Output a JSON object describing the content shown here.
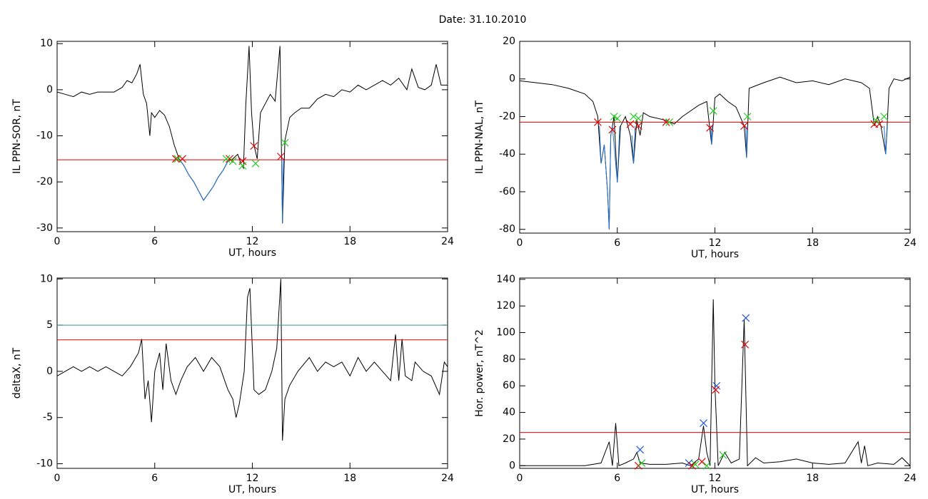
{
  "title": "Date:  31.10.2010",
  "chart_data": [
    {
      "type": "line",
      "ylabel": "IL PPN-SOR, nT",
      "xlabel": "UT, hours",
      "xlim": [
        0,
        24
      ],
      "xticks": [
        0,
        6,
        12,
        18,
        24
      ],
      "ylim": [
        -30.8,
        10.5
      ],
      "yticks": [
        -30,
        -20,
        -10,
        0,
        10
      ],
      "series": [
        {
          "type": "line",
          "color": "#000000",
          "x": [
            0,
            0.5,
            1,
            1.5,
            2,
            2.5,
            3,
            3.5,
            4,
            4.3,
            4.6,
            4.9,
            5.1,
            5.3,
            5.5,
            5.7,
            5.8,
            6.0,
            6.3,
            6.6,
            6.9,
            7.2,
            7.5,
            7.8,
            8.1,
            8.4,
            8.7,
            9,
            9.3,
            9.6,
            9.9,
            10.2,
            10.5,
            10.8,
            11.1,
            11.3,
            11.45,
            11.6,
            11.8,
            11.95,
            12.1,
            12.3,
            12.5,
            12.8,
            13.1,
            13.4,
            13.7,
            13.85,
            14.0,
            14.3,
            14.6,
            15,
            15.5,
            16,
            16.5,
            17,
            17.5,
            18,
            18.5,
            19,
            19.5,
            20,
            20.5,
            21,
            21.5,
            21.8,
            22.2,
            22.6,
            23,
            23.3,
            23.6,
            24
          ],
          "values": [
            -0.5,
            -1,
            -1.5,
            -0.5,
            -1,
            -0.5,
            -0.5,
            -0.5,
            0.5,
            2,
            1.5,
            3.5,
            5.5,
            -1,
            -3,
            -10,
            -5,
            -6,
            -4.5,
            -5.5,
            -8,
            -12,
            -15,
            -16.5,
            -18.5,
            -20,
            -22,
            -24,
            -22.5,
            -21,
            -19,
            -17.5,
            -15.5,
            -15,
            -14,
            -16,
            -17,
            -3,
            9.5,
            -5,
            -12,
            -15,
            -5,
            -3,
            -1,
            -2.5,
            9.5,
            -29,
            -11,
            -6,
            -5,
            -4,
            -4,
            -2,
            -1,
            -1.5,
            0,
            -0.5,
            1,
            0,
            1,
            2,
            1,
            2.5,
            0,
            4.5,
            0.5,
            0,
            1,
            5.5,
            1,
            1
          ]
        },
        {
          "type": "line",
          "color": "#1f6fd0",
          "x": [
            7.5,
            7.8,
            8.1,
            8.4,
            8.7,
            9,
            9.3,
            9.6,
            9.9,
            10.2,
            10.5,
            12,
            13.8,
            13.85,
            13.9
          ],
          "values": [
            -15,
            -16.5,
            -18.5,
            -20,
            -22,
            -24,
            -22.5,
            -21,
            -19,
            -17.5,
            -15.5,
            null,
            -15,
            -29,
            -15
          ]
        },
        {
          "type": "line",
          "color": "#e00000",
          "x": [
            0,
            24
          ],
          "values": [
            -15.2,
            -15.2
          ]
        },
        {
          "type": "scatter",
          "color": "#e00000",
          "x": [
            7.3,
            7.7,
            10.6,
            11.4,
            12.1,
            13.75
          ],
          "values": [
            -15,
            -15,
            -15,
            -15.5,
            -12.2,
            -14.5
          ]
        },
        {
          "type": "scatter",
          "color": "#22cc22",
          "x": [
            7.4,
            10.4,
            10.8,
            11.4,
            12.2,
            14.0
          ],
          "values": [
            -15,
            -15,
            -15.5,
            -16.5,
            -16,
            -11.5
          ]
        }
      ]
    },
    {
      "type": "line",
      "ylabel": "IL PPN-NAL, nT",
      "xlabel": "UT, hours",
      "xlim": [
        0,
        24
      ],
      "xticks": [
        0,
        6,
        12,
        18,
        24
      ],
      "ylim": [
        -82,
        20
      ],
      "yticks": [
        -80,
        -60,
        -40,
        -20,
        0,
        20
      ],
      "series": [
        {
          "type": "line",
          "color": "#000000",
          "x": [
            0,
            1,
            2,
            3,
            4,
            4.5,
            4.8,
            5.0,
            5.2,
            5.4,
            5.5,
            5.6,
            5.8,
            6.0,
            6.2,
            6.5,
            6.8,
            7.0,
            7.2,
            7.4,
            7.6,
            8,
            9,
            9.5,
            10,
            10.5,
            11,
            11.5,
            11.8,
            12,
            12.3,
            12.8,
            13.3,
            13.8,
            13.95,
            14.1,
            15,
            16,
            17,
            18,
            19,
            20,
            21,
            21.5,
            21.8,
            22.0,
            22.2,
            22.5,
            22.7,
            23,
            23.5,
            24
          ],
          "values": [
            -1,
            -2,
            -3,
            -5,
            -8,
            -12,
            -20,
            -45,
            -35,
            -60,
            -80,
            -30,
            -20,
            -55,
            -25,
            -20,
            -30,
            -45,
            -22,
            -30,
            -18,
            -20,
            -22,
            -24,
            -20,
            -17,
            -14,
            -12,
            -35,
            -10,
            -8,
            -12,
            -15,
            -25,
            -42,
            -5,
            -2,
            1,
            -2,
            -1,
            -3,
            0,
            -2,
            -5,
            -25,
            -20,
            -25,
            -40,
            -5,
            0,
            -1,
            1
          ]
        },
        {
          "type": "line",
          "color": "#1f6fd0",
          "x": [
            4.9,
            5.0,
            5.2,
            5.4,
            5.5,
            5.6,
            5.7,
            6.0,
            6.15,
            6.5,
            6.9,
            7.0,
            7.1,
            10,
            11.75,
            11.8,
            11.85,
            13,
            13.9,
            13.95,
            14.0,
            20,
            22.4,
            22.5,
            22.6
          ],
          "values": [
            -25,
            -45,
            -35,
            -60,
            -80,
            -30,
            -25,
            -55,
            -25,
            null,
            -30,
            -45,
            -25,
            null,
            -25,
            -35,
            -25,
            null,
            -25,
            -42,
            -25,
            null,
            -25,
            -40,
            -25
          ]
        },
        {
          "type": "line",
          "color": "#e00000",
          "x": [
            0,
            24
          ],
          "values": [
            -23,
            -23
          ]
        },
        {
          "type": "scatter",
          "color": "#e00000",
          "x": [
            4.8,
            5.7,
            6.8,
            7.3,
            9,
            11.7,
            13.8,
            21.8,
            22.1
          ],
          "values": [
            -23,
            -27,
            -24,
            -25,
            -23,
            -26,
            -25,
            -24,
            -24
          ]
        },
        {
          "type": "scatter",
          "color": "#22cc22",
          "x": [
            5.8,
            6.0,
            7.0,
            7.3,
            9.2,
            11.9,
            14.0,
            21.9,
            22.4
          ],
          "values": [
            -20,
            -21,
            -20,
            -21,
            -23,
            -17,
            -20,
            -22,
            -20
          ]
        }
      ]
    },
    {
      "type": "line",
      "ylabel": "deltaX, nT",
      "xlabel": "UT, hours",
      "xlim": [
        0,
        24
      ],
      "xticks": [
        0,
        6,
        12,
        18,
        24
      ],
      "ylim": [
        -10.5,
        10.1
      ],
      "yticks": [
        -10,
        -5,
        0,
        5,
        10
      ],
      "series": [
        {
          "type": "line",
          "color": "#000000",
          "x": [
            0,
            0.5,
            1,
            1.5,
            2,
            2.5,
            3,
            3.5,
            4,
            4.5,
            5,
            5.2,
            5.4,
            5.6,
            5.8,
            6,
            6.3,
            6.5,
            6.7,
            7,
            7.3,
            7.6,
            8,
            8.5,
            9,
            9.5,
            10,
            10.5,
            10.8,
            11,
            11.2,
            11.5,
            11.7,
            11.85,
            12.1,
            12.4,
            12.8,
            13.2,
            13.5,
            13.75,
            13.85,
            14,
            14.3,
            14.8,
            15.5,
            16,
            16.5,
            17,
            17.5,
            18,
            18.5,
            19,
            19.5,
            20,
            20.5,
            20.8,
            21,
            21.2,
            21.4,
            21.8,
            22,
            22.5,
            23,
            23.5,
            23.8,
            24
          ],
          "values": [
            -0.5,
            0,
            0.5,
            0,
            0.5,
            0,
            0.5,
            0,
            -0.5,
            0.5,
            2,
            3.5,
            -3,
            -1,
            -5.5,
            0,
            2,
            -2,
            3,
            -1,
            -2.5,
            -1,
            0.5,
            1.5,
            0,
            1.5,
            0.5,
            -2,
            -3,
            -5,
            -3.5,
            0,
            8,
            9,
            -2,
            -2.5,
            -2,
            0,
            2.5,
            10,
            -7.5,
            -3,
            -1.5,
            0,
            1.5,
            0,
            1,
            0.5,
            1,
            -0.5,
            1.5,
            0,
            1,
            0,
            -1,
            4,
            -1,
            3.5,
            -0.5,
            -1,
            1,
            0,
            -0.5,
            -2.5,
            1,
            0.5
          ]
        },
        {
          "type": "line",
          "color": "#339999",
          "x": [
            0,
            24
          ],
          "values": [
            5,
            5
          ]
        },
        {
          "type": "line",
          "color": "#e00000",
          "x": [
            0,
            24
          ],
          "values": [
            3.4,
            3.4
          ]
        }
      ]
    },
    {
      "type": "line",
      "ylabel": "Hor. power, nT^2",
      "xlabel": "UT, hours",
      "xlim": [
        0,
        24
      ],
      "xticks": [
        0,
        6,
        12,
        18,
        24
      ],
      "ylim": [
        -2,
        141
      ],
      "yticks": [
        0,
        20,
        40,
        60,
        80,
        100,
        120,
        140
      ],
      "series": [
        {
          "type": "line",
          "color": "#000000",
          "x": [
            0,
            4,
            5,
            5.5,
            5.7,
            5.9,
            6.1,
            6.5,
            7,
            7.2,
            7.4,
            8,
            9,
            10,
            10.5,
            11,
            11.3,
            11.5,
            11.7,
            11.9,
            12.0,
            12.2,
            12.6,
            13,
            13.5,
            13.8,
            14,
            14.5,
            15,
            16,
            17,
            18,
            19,
            20,
            20.8,
            21,
            21.2,
            21.4,
            22,
            23,
            23.5,
            24
          ],
          "values": [
            0,
            0,
            2,
            18,
            0,
            32,
            0,
            2,
            5,
            10,
            2,
            1,
            1,
            2,
            0,
            5,
            30,
            10,
            0,
            125,
            60,
            0,
            10,
            2,
            5,
            110,
            0,
            6,
            2,
            3,
            5,
            2,
            1,
            2,
            18,
            2,
            15,
            0,
            2,
            1,
            6,
            0
          ]
        },
        {
          "type": "line",
          "color": "#e00000",
          "x": [
            0,
            24
          ],
          "values": [
            25,
            25
          ]
        },
        {
          "type": "scatter",
          "color": "#2255dd",
          "x": [
            7.4,
            10.4,
            11.3,
            12.1,
            13.9
          ],
          "values": [
            12,
            2,
            32,
            60,
            111
          ]
        },
        {
          "type": "scatter",
          "color": "#e00000",
          "x": [
            7.3,
            10.6,
            11.2,
            12.05,
            13.85
          ],
          "values": [
            0,
            0,
            3,
            57,
            91
          ]
        },
        {
          "type": "scatter",
          "color": "#22cc22",
          "x": [
            7.5,
            10.8,
            11.5,
            12.5
          ],
          "values": [
            2,
            1,
            0,
            8
          ]
        }
      ]
    }
  ]
}
